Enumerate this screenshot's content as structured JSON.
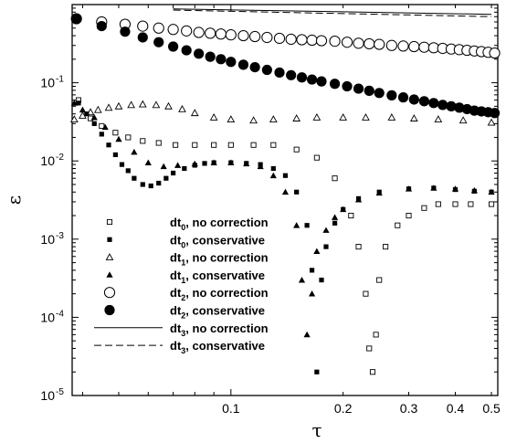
{
  "chart_data": {
    "type": "scatter",
    "title": "",
    "xlabel": "τ",
    "ylabel": "ε",
    "xscale": "log",
    "yscale": "log",
    "xlim": [
      0.0375,
      0.52
    ],
    "ylim": [
      1e-05,
      1
    ],
    "x_ticks": [
      {
        "value": 0.1,
        "label": "0.1"
      },
      {
        "value": 0.2,
        "label": "0.2"
      },
      {
        "value": 0.3,
        "label": "0.3"
      },
      {
        "value": 0.4,
        "label": "0.4"
      },
      {
        "value": 0.5,
        "label": "0.5"
      }
    ],
    "y_ticks": [
      {
        "value": 1e-05,
        "base": "10",
        "exp": "-5"
      },
      {
        "value": 0.0001,
        "base": "10",
        "exp": "-4"
      },
      {
        "value": 0.001,
        "base": "10",
        "exp": "-3"
      },
      {
        "value": 0.01,
        "base": "10",
        "exp": "-2"
      },
      {
        "value": 0.1,
        "base": "10",
        "exp": "-1"
      }
    ],
    "legend_position": "bottom-left",
    "series": [
      {
        "name": "dt",
        "sub": "0",
        "suffix": ", no correction",
        "marker": "open-square",
        "size": 2.6,
        "x": [
          0.039,
          0.042,
          0.045,
          0.049,
          0.053,
          0.058,
          0.064,
          0.071,
          0.08,
          0.09,
          0.1,
          0.115,
          0.13,
          0.15,
          0.17,
          0.19,
          0.21,
          0.22,
          0.23,
          0.235,
          0.24,
          0.245,
          0.25,
          0.26,
          0.28,
          0.3,
          0.33,
          0.36,
          0.4,
          0.44,
          0.5
        ],
        "y": [
          0.06,
          0.035,
          0.028,
          0.023,
          0.02,
          0.018,
          0.017,
          0.016,
          0.016,
          0.016,
          0.016,
          0.016,
          0.016,
          0.014,
          0.011,
          0.006,
          0.002,
          0.0008,
          0.0002,
          4e-05,
          2e-05,
          6e-05,
          0.0003,
          0.0008,
          0.0015,
          0.002,
          0.0025,
          0.0028,
          0.0028,
          0.0028,
          0.0028
        ]
      },
      {
        "name": "dt",
        "sub": "0",
        "suffix": ", conservative",
        "marker": "filled-square",
        "size": 2.6,
        "x": [
          0.039,
          0.041,
          0.043,
          0.045,
          0.047,
          0.049,
          0.051,
          0.053,
          0.055,
          0.058,
          0.061,
          0.064,
          0.067,
          0.07,
          0.075,
          0.08,
          0.085,
          0.09,
          0.1,
          0.11,
          0.12,
          0.13,
          0.14,
          0.15,
          0.16,
          0.165,
          0.17,
          0.175,
          0.18,
          0.19,
          0.2,
          0.22,
          0.25,
          0.3,
          0.35,
          0.4,
          0.45,
          0.5
        ],
        "y": [
          0.055,
          0.04,
          0.03,
          0.022,
          0.016,
          0.012,
          0.009,
          0.0075,
          0.006,
          0.005,
          0.0048,
          0.0052,
          0.006,
          0.007,
          0.008,
          0.0088,
          0.0093,
          0.0095,
          0.0095,
          0.0093,
          0.009,
          0.008,
          0.0065,
          0.004,
          0.0015,
          0.0004,
          2e-05,
          0.0003,
          0.0008,
          0.0016,
          0.0024,
          0.0033,
          0.004,
          0.0044,
          0.0045,
          0.0043,
          0.0041,
          0.004
        ]
      },
      {
        "name": "dt",
        "sub": "1",
        "suffix": ", no correction",
        "marker": "open-triangle",
        "size": 3.6,
        "x": [
          0.038,
          0.04,
          0.042,
          0.044,
          0.047,
          0.05,
          0.054,
          0.058,
          0.063,
          0.068,
          0.074,
          0.08,
          0.09,
          0.1,
          0.115,
          0.13,
          0.15,
          0.17,
          0.2,
          0.23,
          0.27,
          0.31,
          0.36,
          0.42,
          0.5
        ],
        "y": [
          0.034,
          0.038,
          0.042,
          0.045,
          0.048,
          0.05,
          0.052,
          0.053,
          0.052,
          0.05,
          0.046,
          0.041,
          0.036,
          0.034,
          0.033,
          0.034,
          0.035,
          0.036,
          0.036,
          0.036,
          0.036,
          0.035,
          0.034,
          0.033,
          0.031
        ]
      },
      {
        "name": "dt",
        "sub": "1",
        "suffix": ", conservative",
        "marker": "filled-triangle",
        "size": 3.6,
        "x": [
          0.038,
          0.04,
          0.043,
          0.046,
          0.05,
          0.055,
          0.06,
          0.066,
          0.072,
          0.08,
          0.09,
          0.1,
          0.11,
          0.12,
          0.13,
          0.14,
          0.15,
          0.155,
          0.16,
          0.165,
          0.17,
          0.18,
          0.19,
          0.2,
          0.22,
          0.25,
          0.3,
          0.35,
          0.4,
          0.45,
          0.5
        ],
        "y": [
          0.055,
          0.045,
          0.036,
          0.027,
          0.019,
          0.013,
          0.0095,
          0.0085,
          0.0088,
          0.0092,
          0.0095,
          0.0095,
          0.0092,
          0.0085,
          0.0065,
          0.004,
          0.0015,
          0.0003,
          6e-05,
          0.0002,
          0.0007,
          0.0013,
          0.0019,
          0.0024,
          0.0032,
          0.0039,
          0.0044,
          0.0045,
          0.0044,
          0.0042,
          0.004
        ]
      },
      {
        "name": "dt",
        "sub": "2",
        "suffix": ", no correction",
        "marker": "open-circle",
        "size": 5.6,
        "x": [
          0.0385,
          0.045,
          0.052,
          0.058,
          0.064,
          0.07,
          0.076,
          0.082,
          0.088,
          0.094,
          0.1,
          0.108,
          0.116,
          0.125,
          0.135,
          0.145,
          0.155,
          0.165,
          0.175,
          0.19,
          0.205,
          0.22,
          0.235,
          0.25,
          0.27,
          0.29,
          0.31,
          0.33,
          0.35,
          0.37,
          0.39,
          0.41,
          0.43,
          0.45,
          0.47,
          0.49,
          0.51
        ],
        "y": [
          0.66,
          0.6,
          0.56,
          0.53,
          0.5,
          0.48,
          0.46,
          0.44,
          0.43,
          0.42,
          0.41,
          0.4,
          0.39,
          0.38,
          0.37,
          0.36,
          0.355,
          0.35,
          0.345,
          0.34,
          0.33,
          0.32,
          0.315,
          0.31,
          0.3,
          0.295,
          0.29,
          0.285,
          0.28,
          0.275,
          0.27,
          0.265,
          0.26,
          0.255,
          0.25,
          0.245,
          0.24
        ]
      },
      {
        "name": "dt",
        "sub": "2",
        "suffix": ", conservative",
        "marker": "filled-circle",
        "size": 5.6,
        "x": [
          0.0385,
          0.045,
          0.052,
          0.058,
          0.064,
          0.07,
          0.076,
          0.082,
          0.088,
          0.094,
          0.1,
          0.108,
          0.116,
          0.125,
          0.135,
          0.145,
          0.155,
          0.165,
          0.175,
          0.19,
          0.205,
          0.22,
          0.235,
          0.25,
          0.27,
          0.29,
          0.31,
          0.33,
          0.35,
          0.37,
          0.39,
          0.41,
          0.43,
          0.45,
          0.47,
          0.49,
          0.51
        ],
        "y": [
          0.65,
          0.53,
          0.45,
          0.38,
          0.33,
          0.29,
          0.26,
          0.235,
          0.215,
          0.2,
          0.185,
          0.17,
          0.158,
          0.146,
          0.135,
          0.125,
          0.117,
          0.11,
          0.104,
          0.097,
          0.09,
          0.084,
          0.079,
          0.074,
          0.069,
          0.065,
          0.061,
          0.058,
          0.055,
          0.052,
          0.05,
          0.048,
          0.046,
          0.044,
          0.043,
          0.042,
          0.041
        ]
      },
      {
        "name": "dt",
        "sub": "3",
        "suffix": ", no correction",
        "marker": "solid-line",
        "x": [
          0.07,
          0.5
        ],
        "y": [
          0.88,
          0.75
        ]
      },
      {
        "name": "dt",
        "sub": "3",
        "suffix": ", conservative",
        "marker": "dashed-line",
        "x": [
          0.07,
          0.5
        ],
        "y": [
          0.85,
          0.7
        ]
      }
    ]
  }
}
